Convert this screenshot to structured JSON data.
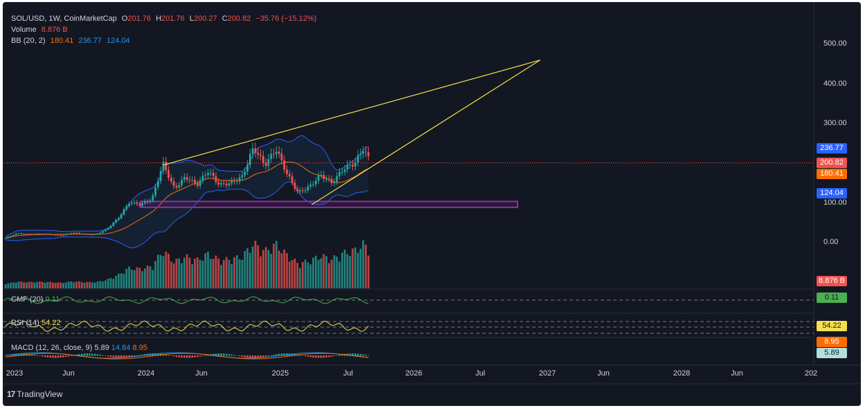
{
  "header": {
    "symbol": "SOL/USD, 1W, CoinMarketCap",
    "open_label": "O",
    "open": "201.76",
    "high_label": "H",
    "high": "201.76",
    "low_label": "L",
    "low": "200.27",
    "close_label": "C",
    "close": "200.82",
    "change": "−35.76 (−15.12%)",
    "volume_label": "Volume",
    "volume": "8.876 B",
    "bb_label": "BB (20, 2)",
    "bb_basis": "180.41",
    "bb_upper": "236.77",
    "bb_lower": "124.04"
  },
  "indicators": {
    "cmf_label": "CMF (20)",
    "cmf_value": "0.11",
    "rsi_label": "RSI (14)",
    "rsi_value": "54.22",
    "macd_label": "MACD (12, 26, close, 9)",
    "macd_value": "5.89",
    "macd_line": "14.84",
    "macd_signal": "8.95"
  },
  "price_axis": {
    "ticks": [
      "500.00",
      "400.00",
      "300.00",
      "200.00",
      "100.00",
      "0.00"
    ]
  },
  "tags": {
    "bb_upper": "236.77",
    "last_price": "200.82",
    "bb_basis": "180.41",
    "bb_lower": "124.04",
    "volume": "8.876 B",
    "cmf": "0.11",
    "rsi": "54.22",
    "macd_signal": "8.95",
    "macd": "5.89"
  },
  "time_axis": {
    "labels": [
      "2023",
      "Jun",
      "2024",
      "Jun",
      "2025",
      "Jul",
      "2026",
      "Jul",
      "2027",
      "Jun",
      "2028",
      "Jun",
      "202"
    ]
  },
  "brand": {
    "name": "TradingView",
    "logo_text": "17"
  },
  "colors": {
    "background": "#131722",
    "up": "#26a69a",
    "down": "#ef5350",
    "bb_band": "#2962ff",
    "bb_basis": "#ff6d00",
    "trendline": "#f7e04b",
    "zone": "#9c27b0",
    "cmf": "#4caf50",
    "rsi": "#f7e04b",
    "macd": "#2196f3",
    "signal": "#ff6d00",
    "last_price_line": "#ef5350"
  },
  "chart_data": {
    "type": "candlestick",
    "title": "SOL/USD, 1W, CoinMarketCap",
    "y_scale": "log",
    "ylim": [
      0,
      500
    ],
    "x_range": [
      "2023-01",
      "2029-02"
    ],
    "weekly_close_approx": [
      [
        "2023-01-01",
        10
      ],
      [
        "2023-02-01",
        22
      ],
      [
        "2023-03-01",
        20
      ],
      [
        "2023-04-01",
        21
      ],
      [
        "2023-05-01",
        20
      ],
      [
        "2023-06-01",
        16
      ],
      [
        "2023-07-01",
        24
      ],
      [
        "2023-08-01",
        20
      ],
      [
        "2023-09-01",
        19
      ],
      [
        "2023-10-01",
        32
      ],
      [
        "2023-11-01",
        60
      ],
      [
        "2023-12-01",
        100
      ],
      [
        "2024-01-01",
        95
      ],
      [
        "2024-02-01",
        110
      ],
      [
        "2024-03-01",
        200
      ],
      [
        "2024-04-01",
        135
      ],
      [
        "2024-05-01",
        165
      ],
      [
        "2024-06-01",
        145
      ],
      [
        "2024-07-01",
        180
      ],
      [
        "2024-08-01",
        145
      ],
      [
        "2024-09-01",
        150
      ],
      [
        "2024-10-01",
        165
      ],
      [
        "2024-11-01",
        240
      ],
      [
        "2024-12-01",
        195
      ],
      [
        "2025-01-01",
        235
      ],
      [
        "2025-02-01",
        170
      ],
      [
        "2025-03-01",
        125
      ],
      [
        "2025-04-01",
        140
      ],
      [
        "2025-05-01",
        170
      ],
      [
        "2025-06-01",
        150
      ],
      [
        "2025-07-01",
        185
      ],
      [
        "2025-08-01",
        200
      ],
      [
        "2025-08-24",
        236
      ],
      [
        "2025-09-14",
        200.82
      ]
    ],
    "bollinger_last": {
      "basis": 180.41,
      "upper": 236.77,
      "lower": 124.04
    },
    "volume_last": "8.876 B",
    "annotations": [
      {
        "type": "rising_wedge",
        "upper_from": [
          "2024-03-01",
          195
        ],
        "upper_to": [
          "2026-12-15",
          460
        ],
        "lower_from": [
          "2025-04-07",
          95
        ],
        "lower_to": [
          "2026-12-15",
          460
        ]
      },
      {
        "type": "support_zone",
        "from": "2024-01-01",
        "to": "2026-10-15",
        "low": 88,
        "high": 103
      }
    ]
  }
}
